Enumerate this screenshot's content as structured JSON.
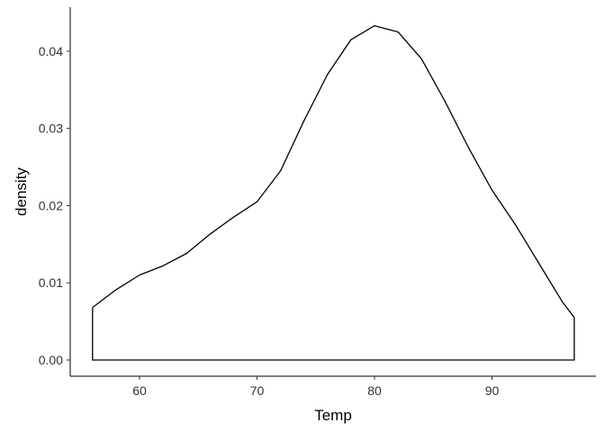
{
  "chart_data": {
    "type": "density",
    "x_label": "Temp",
    "y_label": "density",
    "x": [
      56,
      58,
      60,
      62,
      64,
      66,
      68,
      70,
      72,
      74,
      76,
      78,
      80,
      82,
      84,
      86,
      88,
      90,
      92,
      94,
      96,
      97
    ],
    "values": [
      0.0068,
      0.0091,
      0.011,
      0.0122,
      0.0138,
      0.0163,
      0.0185,
      0.0205,
      0.0245,
      0.031,
      0.037,
      0.0415,
      0.0433,
      0.0425,
      0.039,
      0.0335,
      0.0275,
      0.022,
      0.0175,
      0.0125,
      0.0075,
      0.0055
    ],
    "color": "#000000",
    "xlim": [
      54.1,
      98.85
    ],
    "ylim": [
      -0.0021,
      0.0457
    ],
    "xticks": [
      60,
      70,
      80,
      90
    ],
    "yticks": [
      {
        "value": 0,
        "label": "0.00"
      },
      0.01,
      0.02,
      0.03,
      0.04
    ]
  }
}
